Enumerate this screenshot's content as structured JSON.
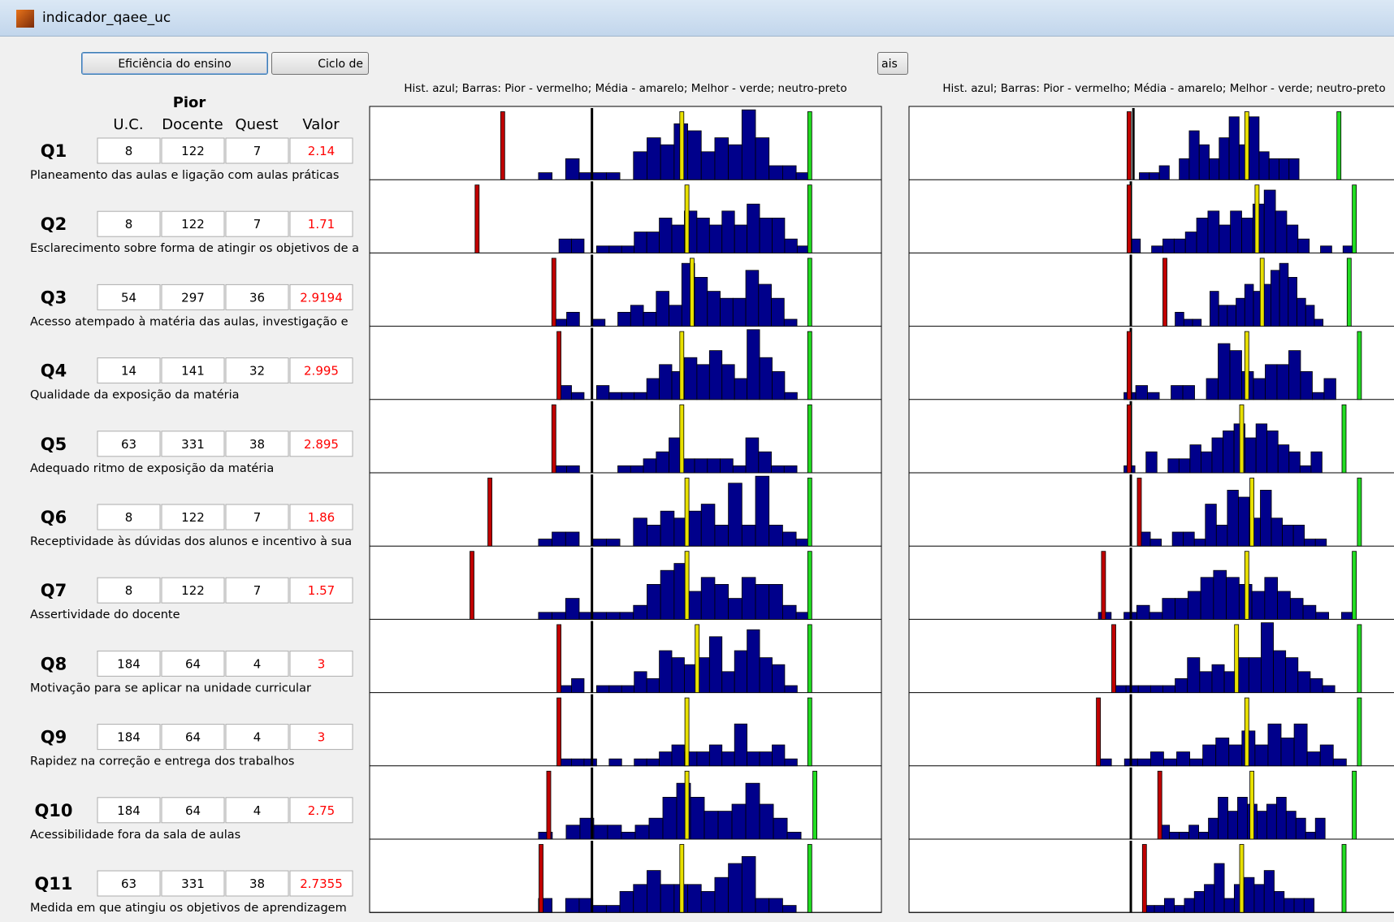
{
  "window": {
    "title": "indicador_qaee_uc"
  },
  "buttons": [
    "Eficiência do ensino",
    "Ciclo de",
    "ais"
  ],
  "header": {
    "group": "Pior",
    "columns": [
      "U.C.",
      "Docente",
      "Quest",
      "Valor"
    ]
  },
  "captions": [
    "Hist. azul; Barras: Pior - vermelho; Média - amarelo; Melhor - verde; neutro-preto",
    "Hist. azul; Barras: Pior - vermelho; Média - amarelo; Melhor - verde; neutro-preto"
  ],
  "rows": [
    {
      "label": "Q1",
      "uc": 8,
      "docente": 122,
      "quest": 7,
      "valor": 2.14,
      "description": "Planeamento das aulas e ligação com aulas práticas"
    },
    {
      "label": "Q2",
      "uc": 8,
      "docente": 122,
      "quest": 7,
      "valor": 1.71,
      "description": "Esclarecimento sobre forma de atingir os objetivos de a"
    },
    {
      "label": "Q3",
      "uc": 54,
      "docente": 297,
      "quest": 36,
      "valor": 2.9194,
      "description": "Acesso atempado à matéria das aulas, investigação e"
    },
    {
      "label": "Q4",
      "uc": 14,
      "docente": 141,
      "quest": 32,
      "valor": 2.995,
      "description": "Qualidade da exposição da matéria"
    },
    {
      "label": "Q5",
      "uc": 63,
      "docente": 331,
      "quest": 38,
      "valor": 2.895,
      "description": "Adequado ritmo de exposição da matéria"
    },
    {
      "label": "Q6",
      "uc": 8,
      "docente": 122,
      "quest": 7,
      "valor": 1.86,
      "description": "Receptividade às dúvidas dos alunos e incentivo à sua"
    },
    {
      "label": "Q7",
      "uc": 8,
      "docente": 122,
      "quest": 7,
      "valor": 1.57,
      "description": "Assertividade do docente"
    },
    {
      "label": "Q8",
      "uc": 184,
      "docente": 64,
      "quest": 4,
      "valor": 3,
      "description": "Motivação para se aplicar na unidade curricular"
    },
    {
      "label": "Q9",
      "uc": 184,
      "docente": 64,
      "quest": 4,
      "valor": 3,
      "description": "Rapidez na correção e entrega dos trabalhos"
    },
    {
      "label": "Q10",
      "uc": 184,
      "docente": 64,
      "quest": 4,
      "valor": 2.75,
      "description": "Acessibilidade fora da sala de aulas"
    },
    {
      "label": "Q11",
      "uc": 63,
      "docente": 331,
      "quest": 38,
      "valor": 2.7355,
      "description": "Medida em que atingiu os objetivos de aprendizagem"
    }
  ],
  "histograms": [
    {
      "left": {
        "pior": 0.26,
        "neutro": 0.436,
        "media": 0.61,
        "melhor": 0.86,
        "range": [
          0.33,
          0.86
        ],
        "counts": [
          0.1,
          0,
          0.3,
          0.1,
          0.1,
          0.1,
          0,
          0.4,
          0.6,
          0.5,
          0.8,
          0.7,
          0.4,
          0.6,
          0.5,
          1.0,
          0.6,
          0.2,
          0.2,
          0.1
        ]
      },
      "right": {
        "pior": 0.43,
        "neutro": 0.44,
        "media": 0.66,
        "melhor": 0.84,
        "range": [
          0.45,
          0.84
        ],
        "counts": [
          0.1,
          0.1,
          0.2,
          0,
          0.3,
          0.7,
          0.5,
          0.3,
          0.6,
          0.9,
          0.5,
          0.9,
          0.4,
          0.3,
          0.3,
          0.3,
          0,
          0,
          0,
          0
        ]
      }
    },
    {
      "left": {
        "pior": 0.21,
        "neutro": 0.436,
        "media": 0.62,
        "melhor": 0.86,
        "range": [
          0.37,
          0.86
        ],
        "counts": [
          0.2,
          0.2,
          0,
          0.1,
          0.1,
          0.1,
          0.3,
          0.3,
          0.5,
          0.4,
          0.6,
          0.5,
          0.4,
          0.6,
          0.4,
          0.7,
          0.5,
          0.5,
          0.2,
          0.1
        ]
      },
      "right": {
        "pior": 0.43,
        "neutro": 0.435,
        "media": 0.68,
        "melhor": 0.87,
        "range": [
          0.43,
          0.87
        ],
        "counts": [
          0.2,
          0,
          0.1,
          0.2,
          0.2,
          0.3,
          0.5,
          0.6,
          0.4,
          0.6,
          0.5,
          0.7,
          0.9,
          0.6,
          0.4,
          0.2,
          0,
          0.1,
          0,
          0.1
        ]
      }
    },
    {
      "left": {
        "pior": 0.36,
        "neutro": 0.436,
        "media": 0.63,
        "melhor": 0.86,
        "range": [
          0.36,
          0.86
        ],
        "counts": [
          0.1,
          0.2,
          0,
          0.1,
          0,
          0.2,
          0.3,
          0.2,
          0.5,
          0.3,
          0.9,
          0.7,
          0.5,
          0.4,
          0.4,
          0.8,
          0.6,
          0.4,
          0.1,
          0
        ]
      },
      "right": {
        "pior": 0.5,
        "neutro": 0.435,
        "media": 0.69,
        "melhor": 0.86,
        "range": [
          0.52,
          0.86
        ],
        "counts": [
          0.2,
          0.1,
          0.1,
          0,
          0.5,
          0.3,
          0.3,
          0.4,
          0.6,
          0.5,
          0.6,
          0.8,
          0.9,
          0.7,
          0.4,
          0.3,
          0.1,
          0,
          0,
          0
        ]
      }
    },
    {
      "left": {
        "pior": 0.37,
        "neutro": 0.436,
        "media": 0.61,
        "melhor": 0.86,
        "range": [
          0.37,
          0.86
        ],
        "counts": [
          0.2,
          0.1,
          0,
          0.2,
          0.1,
          0.1,
          0.1,
          0.3,
          0.5,
          0.4,
          0.6,
          0.5,
          0.7,
          0.5,
          0.3,
          1.0,
          0.6,
          0.4,
          0.1,
          0
        ]
      },
      "right": {
        "pior": 0.43,
        "neutro": 0.435,
        "media": 0.66,
        "melhor": 0.88,
        "range": [
          0.42,
          0.88
        ],
        "counts": [
          0.1,
          0.2,
          0.1,
          0,
          0.2,
          0.2,
          0,
          0.3,
          0.8,
          0.7,
          0.4,
          0.3,
          0.5,
          0.5,
          0.7,
          0.4,
          0.1,
          0.3,
          0,
          0
        ]
      }
    },
    {
      "left": {
        "pior": 0.36,
        "neutro": 0.436,
        "media": 0.61,
        "melhor": 0.86,
        "range": [
          0.36,
          0.86
        ],
        "counts": [
          0.1,
          0.1,
          0,
          0,
          0,
          0.1,
          0.1,
          0.2,
          0.3,
          0.5,
          0.2,
          0.2,
          0.2,
          0.2,
          0.1,
          0.5,
          0.3,
          0.1,
          0.1,
          0
        ]
      },
      "right": {
        "pior": 0.43,
        "neutro": 0.435,
        "media": 0.65,
        "melhor": 0.85,
        "range": [
          0.42,
          0.85
        ],
        "counts": [
          0.1,
          0,
          0.3,
          0,
          0.2,
          0.2,
          0.4,
          0.3,
          0.5,
          0.6,
          0.7,
          0.5,
          0.7,
          0.6,
          0.4,
          0.3,
          0.1,
          0.3,
          0,
          0
        ]
      }
    },
    {
      "left": {
        "pior": 0.235,
        "neutro": 0.436,
        "media": 0.62,
        "melhor": 0.86,
        "range": [
          0.33,
          0.86
        ],
        "counts": [
          0.1,
          0.2,
          0.2,
          0,
          0.1,
          0.1,
          0,
          0.4,
          0.3,
          0.5,
          0.4,
          0.5,
          0.6,
          0.3,
          0.9,
          0.3,
          1.0,
          0.3,
          0.2,
          0.1
        ]
      },
      "right": {
        "pior": 0.45,
        "neutro": 0.435,
        "media": 0.67,
        "melhor": 0.88,
        "range": [
          0.45,
          0.88
        ],
        "counts": [
          0.2,
          0.1,
          0,
          0.2,
          0.2,
          0.1,
          0.6,
          0.3,
          0.8,
          0.7,
          0.4,
          0.8,
          0.4,
          0.3,
          0.3,
          0.1,
          0.1,
          0,
          0,
          0
        ]
      }
    },
    {
      "left": {
        "pior": 0.2,
        "neutro": 0.436,
        "media": 0.62,
        "melhor": 0.86,
        "range": [
          0.33,
          0.86
        ],
        "counts": [
          0.1,
          0.1,
          0.3,
          0.1,
          0.1,
          0.1,
          0.1,
          0.2,
          0.5,
          0.7,
          0.8,
          0.4,
          0.6,
          0.5,
          0.3,
          0.6,
          0.5,
          0.5,
          0.2,
          0.1
        ]
      },
      "right": {
        "pior": 0.38,
        "neutro": 0.435,
        "media": 0.66,
        "melhor": 0.87,
        "range": [
          0.37,
          0.87
        ],
        "counts": [
          0.1,
          0,
          0.1,
          0.2,
          0.1,
          0.3,
          0.3,
          0.4,
          0.6,
          0.7,
          0.6,
          0.5,
          0.4,
          0.6,
          0.4,
          0.3,
          0.2,
          0.1,
          0,
          0.1
        ]
      }
    },
    {
      "left": {
        "pior": 0.37,
        "neutro": 0.436,
        "media": 0.64,
        "melhor": 0.86,
        "range": [
          0.37,
          0.86
        ],
        "counts": [
          0.1,
          0.2,
          0,
          0.1,
          0.1,
          0.1,
          0.3,
          0.2,
          0.6,
          0.5,
          0.4,
          0.5,
          0.8,
          0.3,
          0.6,
          0.9,
          0.5,
          0.4,
          0.1,
          0
        ]
      },
      "right": {
        "pior": 0.4,
        "neutro": 0.435,
        "media": 0.64,
        "melhor": 0.88,
        "range": [
          0.4,
          0.88
        ],
        "counts": [
          0.1,
          0.1,
          0.1,
          0.1,
          0.1,
          0.2,
          0.5,
          0.3,
          0.4,
          0.3,
          0.5,
          0.5,
          1.0,
          0.6,
          0.5,
          0.3,
          0.2,
          0.1,
          0,
          0
        ]
      }
    },
    {
      "left": {
        "pior": 0.37,
        "neutro": 0.436,
        "media": 0.62,
        "melhor": 0.86,
        "range": [
          0.37,
          0.86
        ],
        "counts": [
          0.1,
          0.1,
          0.1,
          0,
          0.1,
          0,
          0.1,
          0.1,
          0.2,
          0.3,
          0.2,
          0.2,
          0.3,
          0.2,
          0.6,
          0.2,
          0.2,
          0.3,
          0.1,
          0
        ]
      },
      "right": {
        "pior": 0.37,
        "neutro": 0.435,
        "media": 0.66,
        "melhor": 0.88,
        "range": [
          0.37,
          0.88
        ],
        "counts": [
          0.1,
          0,
          0.1,
          0.1,
          0.2,
          0.1,
          0.2,
          0.1,
          0.3,
          0.4,
          0.3,
          0.5,
          0.3,
          0.6,
          0.4,
          0.6,
          0.2,
          0.3,
          0.1,
          0
        ]
      }
    },
    {
      "left": {
        "pior": 0.35,
        "neutro": 0.436,
        "media": 0.62,
        "melhor": 0.87,
        "range": [
          0.33,
          0.87
        ],
        "counts": [
          0.1,
          0,
          0.2,
          0.3,
          0.2,
          0.2,
          0.1,
          0.2,
          0.3,
          0.6,
          0.8,
          0.6,
          0.4,
          0.4,
          0.5,
          0.8,
          0.5,
          0.3,
          0.1,
          0
        ]
      },
      "right": {
        "pior": 0.49,
        "neutro": 0.435,
        "media": 0.67,
        "melhor": 0.87,
        "range": [
          0.49,
          0.87
        ],
        "counts": [
          0.2,
          0.1,
          0.1,
          0.2,
          0.1,
          0.3,
          0.6,
          0.4,
          0.6,
          0.5,
          0.4,
          0.5,
          0.6,
          0.4,
          0.3,
          0.1,
          0.3,
          0,
          0,
          0
        ]
      }
    },
    {
      "left": {
        "pior": 0.335,
        "neutro": 0.436,
        "media": 0.61,
        "melhor": 0.86,
        "range": [
          0.33,
          0.86
        ],
        "counts": [
          0.2,
          0,
          0.2,
          0.2,
          0.1,
          0.1,
          0.3,
          0.4,
          0.6,
          0.4,
          0.4,
          0.4,
          0.3,
          0.5,
          0.7,
          0.8,
          0.2,
          0.2,
          0.1,
          0
        ]
      },
      "right": {
        "pior": 0.46,
        "neutro": 0.435,
        "media": 0.65,
        "melhor": 0.85,
        "range": [
          0.46,
          0.85
        ],
        "counts": [
          0.1,
          0.1,
          0.2,
          0.1,
          0.2,
          0.3,
          0.4,
          0.7,
          0.2,
          0.4,
          0.5,
          0.4,
          0.6,
          0.3,
          0.2,
          0.2,
          0.2,
          0,
          0,
          0
        ]
      }
    }
  ]
}
